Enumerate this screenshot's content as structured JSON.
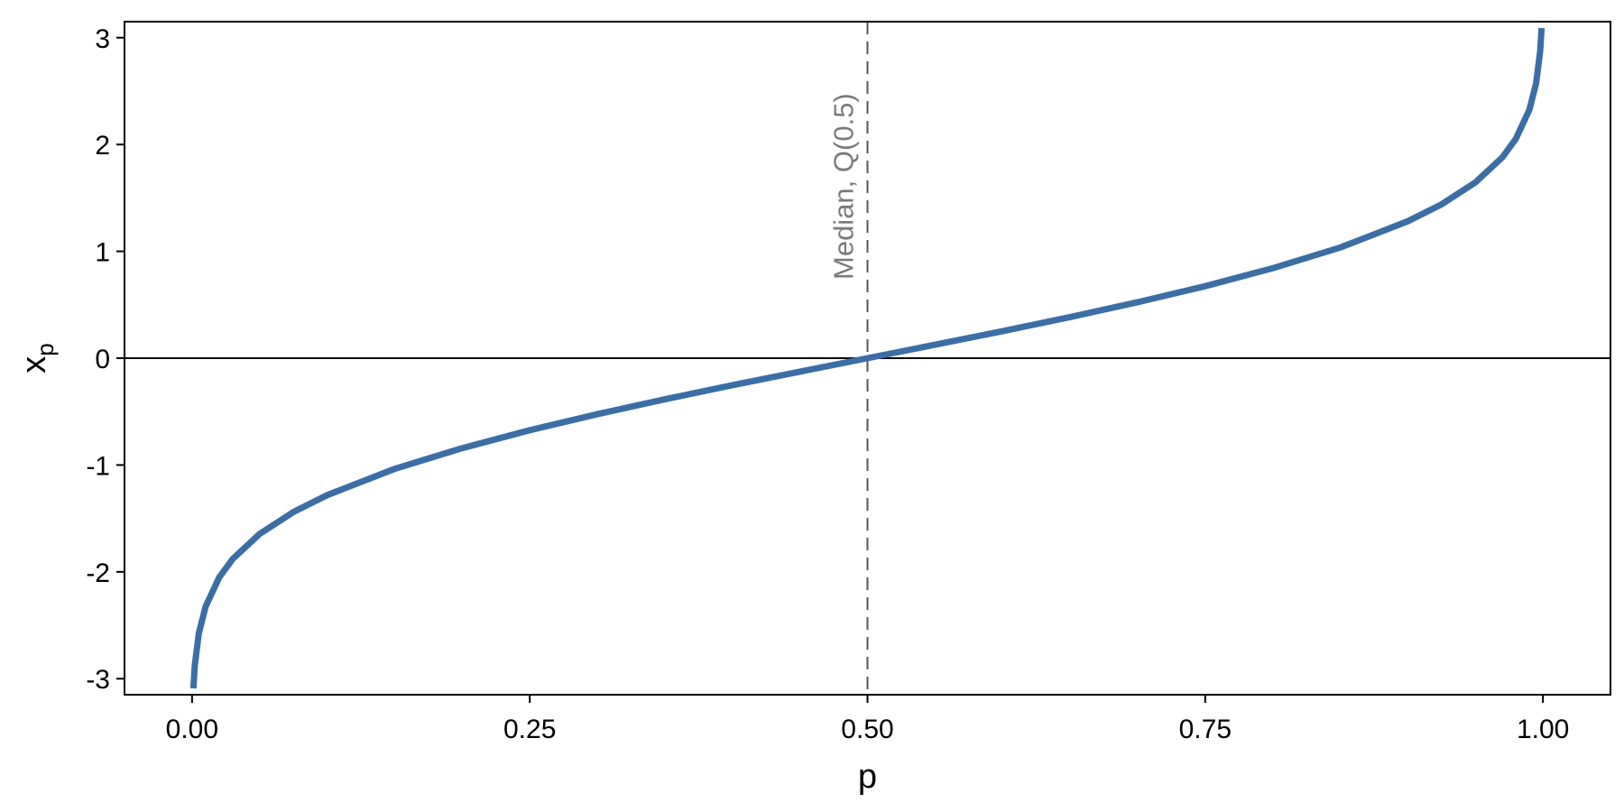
{
  "chart_data": {
    "type": "line",
    "title": "",
    "xlabel": "p",
    "ylabel_main": "x",
    "ylabel_sub": "p",
    "xlim": [
      -0.05,
      1.05
    ],
    "ylim": [
      -3.15,
      3.15
    ],
    "xticks": [
      0,
      0.25,
      0.5,
      0.75,
      1
    ],
    "xtick_labels": [
      "0.00",
      "0.25",
      "0.50",
      "0.75",
      "1.00"
    ],
    "yticks": [
      -3,
      -2,
      -1,
      0,
      1,
      2,
      3
    ],
    "ytick_labels": [
      "-3",
      "-2",
      "-1",
      "0",
      "1",
      "2",
      "3"
    ],
    "grid": false,
    "legend": "none",
    "series": [
      {
        "color": "#3a6ea5",
        "x": [
          0.001,
          0.002,
          0.005,
          0.01,
          0.02,
          0.03,
          0.05,
          0.075,
          0.1,
          0.15,
          0.2,
          0.25,
          0.3,
          0.35,
          0.4,
          0.45,
          0.5,
          0.55,
          0.6,
          0.65,
          0.7,
          0.75,
          0.8,
          0.85,
          0.9,
          0.925,
          0.95,
          0.97,
          0.98,
          0.99,
          0.995,
          0.998,
          0.999
        ],
        "y": [
          -3.09,
          -2.878,
          -2.576,
          -2.326,
          -2.054,
          -1.881,
          -1.645,
          -1.44,
          -1.282,
          -1.036,
          -0.842,
          -0.674,
          -0.524,
          -0.385,
          -0.253,
          -0.126,
          0.0,
          0.126,
          0.253,
          0.385,
          0.524,
          0.674,
          0.842,
          1.036,
          1.282,
          1.44,
          1.645,
          1.881,
          2.054,
          2.326,
          2.576,
          2.878,
          3.09
        ]
      }
    ],
    "reference_lines": [
      {
        "orientation": "horizontal",
        "value": 0,
        "style": "solid",
        "color": "#000000"
      },
      {
        "orientation": "vertical",
        "value": 0.5,
        "style": "dashed",
        "color": "#555555"
      }
    ],
    "annotation": {
      "text": "Median, Q(0.5)",
      "x": 0.5,
      "color": "#7a7a7a",
      "rotation": "vertical"
    }
  }
}
